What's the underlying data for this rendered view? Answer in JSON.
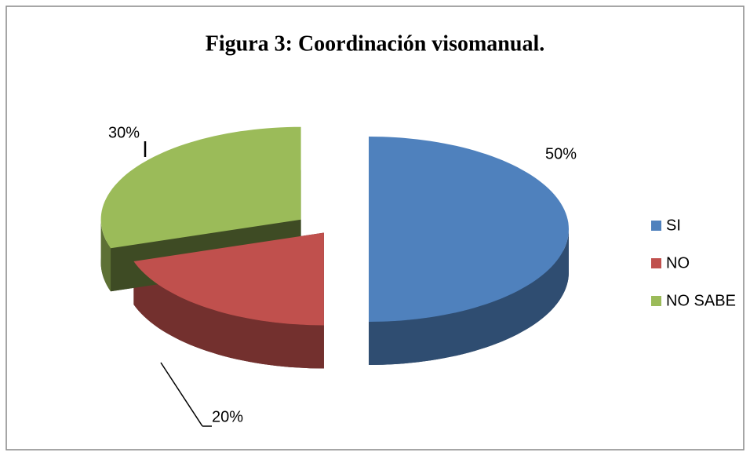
{
  "chart_data": {
    "type": "pie",
    "title": "Figura 3: Coordinación visomanual.",
    "categories": [
      "SI",
      "NO",
      "NO SABE"
    ],
    "values": [
      50,
      20,
      30
    ],
    "value_labels": [
      "50%",
      "20%",
      "30%"
    ],
    "colors": [
      "#4f81bd",
      "#c0504d",
      "#9bbb59"
    ],
    "legend": "right"
  }
}
